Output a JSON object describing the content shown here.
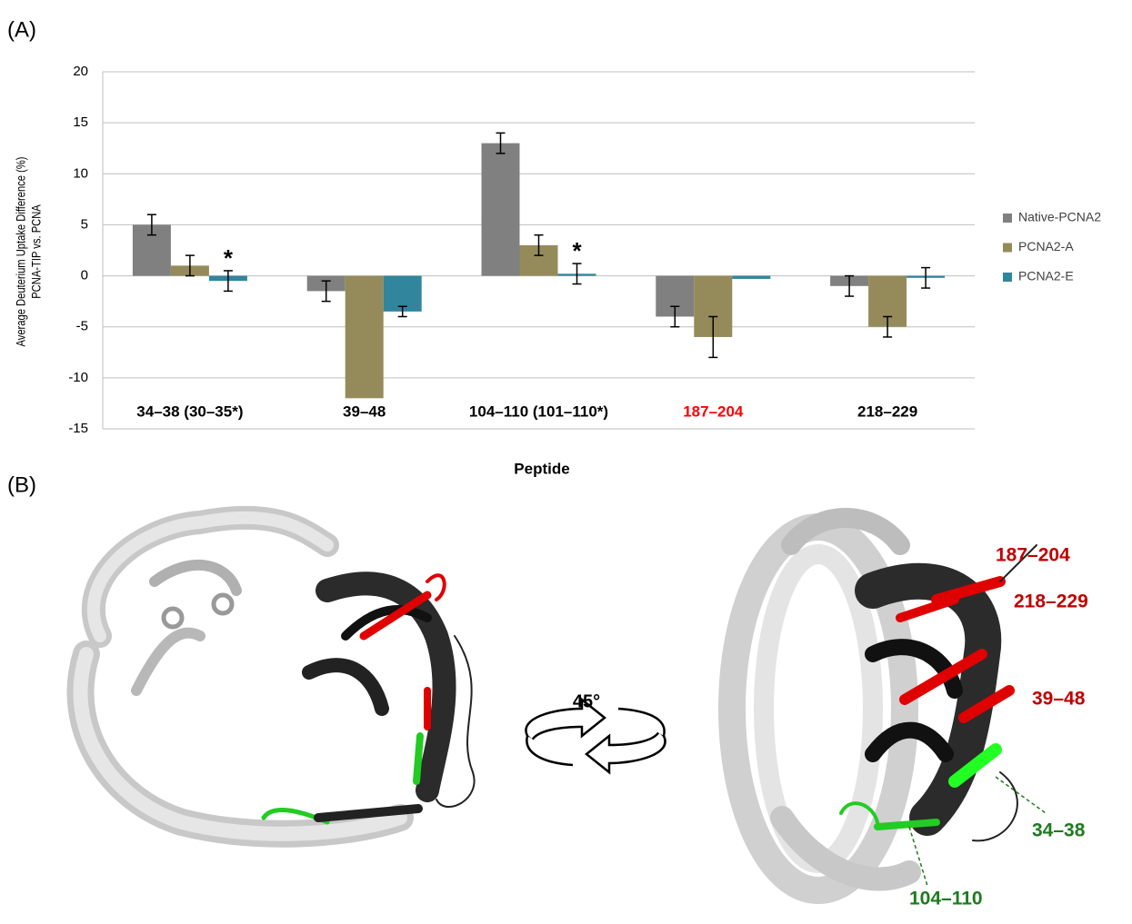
{
  "panel_a": {
    "label": "(A)"
  },
  "chart_data": {
    "type": "bar",
    "ylabel": [
      "Average Deuterium Uptake Difference (%)",
      "PCNA-TIP vs. PCNA"
    ],
    "xlabel": "Peptide",
    "categories": [
      "34–38 (30–35*)",
      "39–48",
      "104–110 (101–110*)",
      "187–204",
      "218–229"
    ],
    "category_colors": [
      "#000000",
      "#000000",
      "#000000",
      "#ff0000",
      "#000000"
    ],
    "annotations": [
      "*",
      null,
      "*",
      null,
      null
    ],
    "series": [
      {
        "name": "Native-PCNA2",
        "color": "#808080",
        "values": [
          5,
          -1.5,
          13,
          -4,
          -1
        ],
        "errors": [
          1,
          1,
          1,
          1,
          1
        ]
      },
      {
        "name": "PCNA2-A",
        "color": "#958b5a",
        "values": [
          1,
          -12,
          3,
          -6,
          -5
        ],
        "errors": [
          1,
          null,
          1,
          2,
          1
        ]
      },
      {
        "name": "PCNA2-E",
        "color": "#31859c",
        "values": [
          -0.5,
          -3.5,
          0.2,
          -0.3,
          -0.2
        ],
        "errors": [
          1,
          0.5,
          1,
          null,
          1
        ]
      }
    ],
    "ylim": [
      -15,
      20
    ],
    "yticks": [
      -15,
      -10,
      -5,
      0,
      5,
      10,
      15,
      20
    ],
    "grid": true,
    "legend": "right"
  },
  "panel_b": {
    "label": "(B)",
    "rotation": "45°",
    "regions": [
      {
        "label": "187–204",
        "color": "#c00000"
      },
      {
        "label": "218–229",
        "color": "#c00000"
      },
      {
        "label": "39–48",
        "color": "#c00000"
      },
      {
        "label": "34–38",
        "color": "#1e7b1e"
      },
      {
        "label": "104–110",
        "color": "#1e7b1e"
      }
    ]
  }
}
